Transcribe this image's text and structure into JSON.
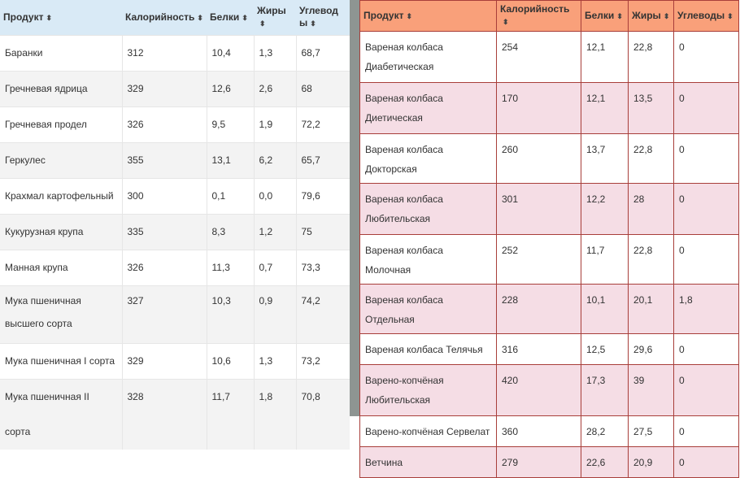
{
  "colors": {
    "left_header": "#d9eaf6",
    "right_header": "#f9a07a",
    "right_border": "#a83e3a",
    "right_stripe": "#f5dde5"
  },
  "sort_icon": "sort-arrows-icon",
  "left_table": {
    "headers": [
      "Продукт",
      "Калорийность",
      "Белки",
      "Жиры",
      "Углеводы"
    ],
    "rows": [
      [
        "Баранки",
        "312",
        "10,4",
        "1,3",
        "68,7"
      ],
      [
        "Гречневая ядрица",
        "329",
        "12,6",
        "2,6",
        "68"
      ],
      [
        "Гречневая продел",
        "326",
        "9,5",
        "1,9",
        "72,2"
      ],
      [
        "Геркулес",
        "355",
        "13,1",
        "6,2",
        "65,7"
      ],
      [
        "Крахмал картофельный",
        "300",
        "0,1",
        "0,0",
        "79,6"
      ],
      [
        "Кукурузная крупа",
        "335",
        "8,3",
        "1,2",
        "75"
      ],
      [
        "Манная крупа",
        "326",
        "11,3",
        "0,7",
        "73,3"
      ],
      [
        "Мука пшеничная высшего сорта",
        "327",
        "10,3",
        "0,9",
        "74,2"
      ],
      [
        "Мука пшеничная I сорта",
        "329",
        "10,6",
        "1,3",
        "73,2"
      ],
      [
        "Мука пшеничная II сорта",
        "328",
        "11,7",
        "1,8",
        "70,8"
      ]
    ]
  },
  "right_table": {
    "headers": [
      "Продукт",
      "Калорийность",
      "Белки",
      "Жиры",
      "Углеводы"
    ],
    "rows": [
      [
        "Вареная колбаса Диабетическая",
        "254",
        "12,1",
        "22,8",
        "0"
      ],
      [
        "Вареная колбаса Диетическая",
        "170",
        "12,1",
        "13,5",
        "0"
      ],
      [
        "Вареная колбаса Докторская",
        "260",
        "13,7",
        "22,8",
        "0"
      ],
      [
        "Вареная колбаса Любительская",
        "301",
        "12,2",
        "28",
        "0"
      ],
      [
        "Вареная колбаса Молочная",
        "252",
        "11,7",
        "22,8",
        "0"
      ],
      [
        "Вареная колбаса Отдельная",
        "228",
        "10,1",
        "20,1",
        "1,8"
      ],
      [
        "Вареная колбаса Телячья",
        "316",
        "12,5",
        "29,6",
        "0"
      ],
      [
        "Варено-копчёная Любительская",
        "420",
        "17,3",
        "39",
        "0"
      ],
      [
        "Варено-копчёная Сервелат",
        "360",
        "28,2",
        "27,5",
        "0"
      ],
      [
        "Ветчина",
        "279",
        "22,6",
        "20,9",
        "0"
      ]
    ]
  }
}
